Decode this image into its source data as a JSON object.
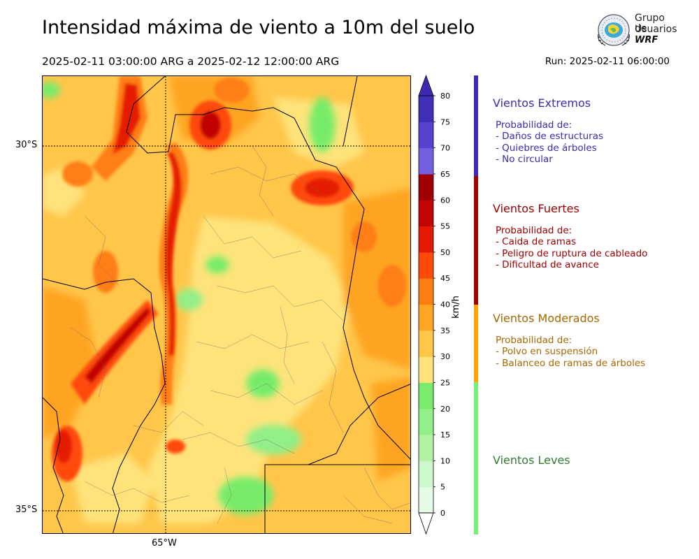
{
  "header": {
    "title": "Intensidad máxima de viento a 10m del suelo",
    "period": "2025-02-11 03:00:00 ARG  a  2025-02-12 12:00:00 ARG",
    "run": "Run: 2025-02-11 06:00:00"
  },
  "logo": {
    "line1": "Grupo de",
    "line2": "Usuarios",
    "line3": "WRF"
  },
  "map": {
    "lat_labels": [
      "30°S",
      "35°S"
    ],
    "lon_labels": [
      "65°W"
    ]
  },
  "colorbar": {
    "unit": "km/h",
    "ticks": [
      "0",
      "5",
      "10",
      "15",
      "20",
      "25",
      "30",
      "35",
      "40",
      "45",
      "50",
      "55",
      "60",
      "65",
      "70",
      "75",
      "80"
    ],
    "colors": [
      "#e6fbe6",
      "#cdf7cd",
      "#b2f2a5",
      "#92ee86",
      "#78ec6b",
      "#ffe37a",
      "#ffc64a",
      "#ffa423",
      "#ff7e12",
      "#ff4a0a",
      "#e51a06",
      "#c20505",
      "#a00000",
      "#7161e0",
      "#5543cf",
      "#4030b8"
    ],
    "extend_max_color": "#3c2ab4",
    "extend_min_color": "#ffffff"
  },
  "legend": [
    {
      "name": "Vientos Extremos",
      "color": "#3e2ab0",
      "bar_color": "#3c2ab4",
      "desc": [
        "Probabilidad de:",
        "- Daños de estructuras",
        "- Quiebres de árboles",
        "- No circular"
      ]
    },
    {
      "name": "Vientos Fuertes",
      "color": "#a00000",
      "bar_color": "#a00000",
      "desc": [
        "Probabilidad de:",
        "- Caida de ramas",
        "- Peligro de ruptura de cableado",
        "- Dificultad de avance"
      ]
    },
    {
      "name": "Vientos Moderados",
      "color": "#a86800",
      "bar_color": "#ffa500",
      "desc": [
        "Probabilidad de:",
        "- Polvo en suspensión",
        "- Balanceo de ramas de árboles"
      ]
    },
    {
      "name": "Vientos Leves",
      "color": "#2e7d32",
      "bar_color": "#76f07a",
      "desc": []
    }
  ]
}
